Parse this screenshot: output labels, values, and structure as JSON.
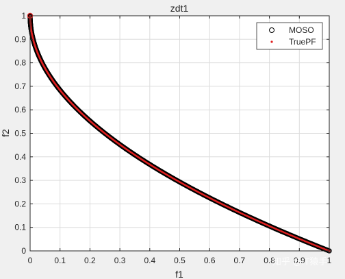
{
  "chart_data": {
    "type": "scatter",
    "title": "zdt1",
    "xlabel": "f1",
    "ylabel": "f2",
    "xlim": [
      0,
      1
    ],
    "ylim": [
      0,
      1
    ],
    "xticks": [
      "0",
      "0.1",
      "0.2",
      "0.3",
      "0.4",
      "0.5",
      "0.6",
      "0.7",
      "0.8",
      "0.9",
      "1"
    ],
    "yticks": [
      "0",
      "0.1",
      "0.2",
      "0.3",
      "0.4",
      "0.5",
      "0.6",
      "0.7",
      "0.8",
      "0.9",
      "1"
    ],
    "grid": true,
    "legend_position": "top-right",
    "series": [
      {
        "name": "MOSO",
        "marker": "circle-open",
        "color": "#000000",
        "function": "f2 = 1 - sqrt(f1)",
        "x": [
          0,
          0.0005,
          0.001,
          0.002,
          0.003,
          0.005,
          0.007,
          0.01,
          0.013,
          0.016,
          0.02,
          0.025,
          0.03,
          0.035,
          0.04,
          0.05,
          0.06,
          0.07,
          0.08,
          0.09,
          0.1,
          0.12,
          0.14,
          0.16,
          0.18,
          0.2,
          0.22,
          0.24,
          0.26,
          0.28,
          0.3,
          0.32,
          0.34,
          0.36,
          0.38,
          0.4,
          0.42,
          0.44,
          0.46,
          0.48,
          0.5,
          0.52,
          0.54,
          0.56,
          0.58,
          0.6,
          0.62,
          0.64,
          0.66,
          0.68,
          0.7,
          0.72,
          0.74,
          0.76,
          0.78,
          0.8,
          0.82,
          0.84,
          0.86,
          0.88,
          0.9,
          0.92,
          0.94,
          0.96,
          0.98,
          1
        ],
        "y": [
          1,
          0.978,
          0.968,
          0.955,
          0.945,
          0.929,
          0.916,
          0.9,
          0.886,
          0.874,
          0.859,
          0.842,
          0.827,
          0.813,
          0.8,
          0.776,
          0.755,
          0.735,
          0.717,
          0.7,
          0.684,
          0.654,
          0.626,
          0.6,
          0.576,
          0.553,
          0.531,
          0.51,
          0.49,
          0.471,
          0.452,
          0.434,
          0.417,
          0.4,
          0.384,
          0.368,
          0.352,
          0.337,
          0.322,
          0.307,
          0.293,
          0.279,
          0.265,
          0.252,
          0.238,
          0.225,
          0.213,
          0.2,
          0.188,
          0.175,
          0.163,
          0.151,
          0.14,
          0.128,
          0.117,
          0.106,
          0.094,
          0.083,
          0.073,
          0.062,
          0.051,
          0.041,
          0.03,
          0.02,
          0.01,
          0
        ]
      },
      {
        "name": "TruePF",
        "marker": "dot",
        "color": "#e02020",
        "function": "f2 = 1 - sqrt(f1)",
        "x": [
          0,
          0.001,
          0.004,
          0.009,
          0.016,
          0.025,
          0.036,
          0.049,
          0.064,
          0.081,
          0.1,
          0.121,
          0.144,
          0.169,
          0.196,
          0.225,
          0.256,
          0.289,
          0.324,
          0.361,
          0.4,
          0.441,
          0.484,
          0.529,
          0.576,
          0.625,
          0.676,
          0.729,
          0.784,
          0.841,
          0.9,
          0.961,
          1
        ],
        "y": [
          1,
          0.968,
          0.937,
          0.905,
          0.874,
          0.842,
          0.81,
          0.779,
          0.747,
          0.715,
          0.684,
          0.652,
          0.621,
          0.589,
          0.557,
          0.526,
          0.494,
          0.462,
          0.431,
          0.399,
          0.368,
          0.336,
          0.304,
          0.273,
          0.241,
          0.209,
          0.178,
          0.146,
          0.115,
          0.083,
          0.051,
          0.02,
          0
        ]
      }
    ]
  },
  "watermark": {
    "text": "知乎 @IT猿手"
  },
  "colors": {
    "figure_background": "#f0f0f0",
    "axes_background": "#ffffff",
    "grid": "#dcdcdc",
    "axis": "#262626"
  }
}
